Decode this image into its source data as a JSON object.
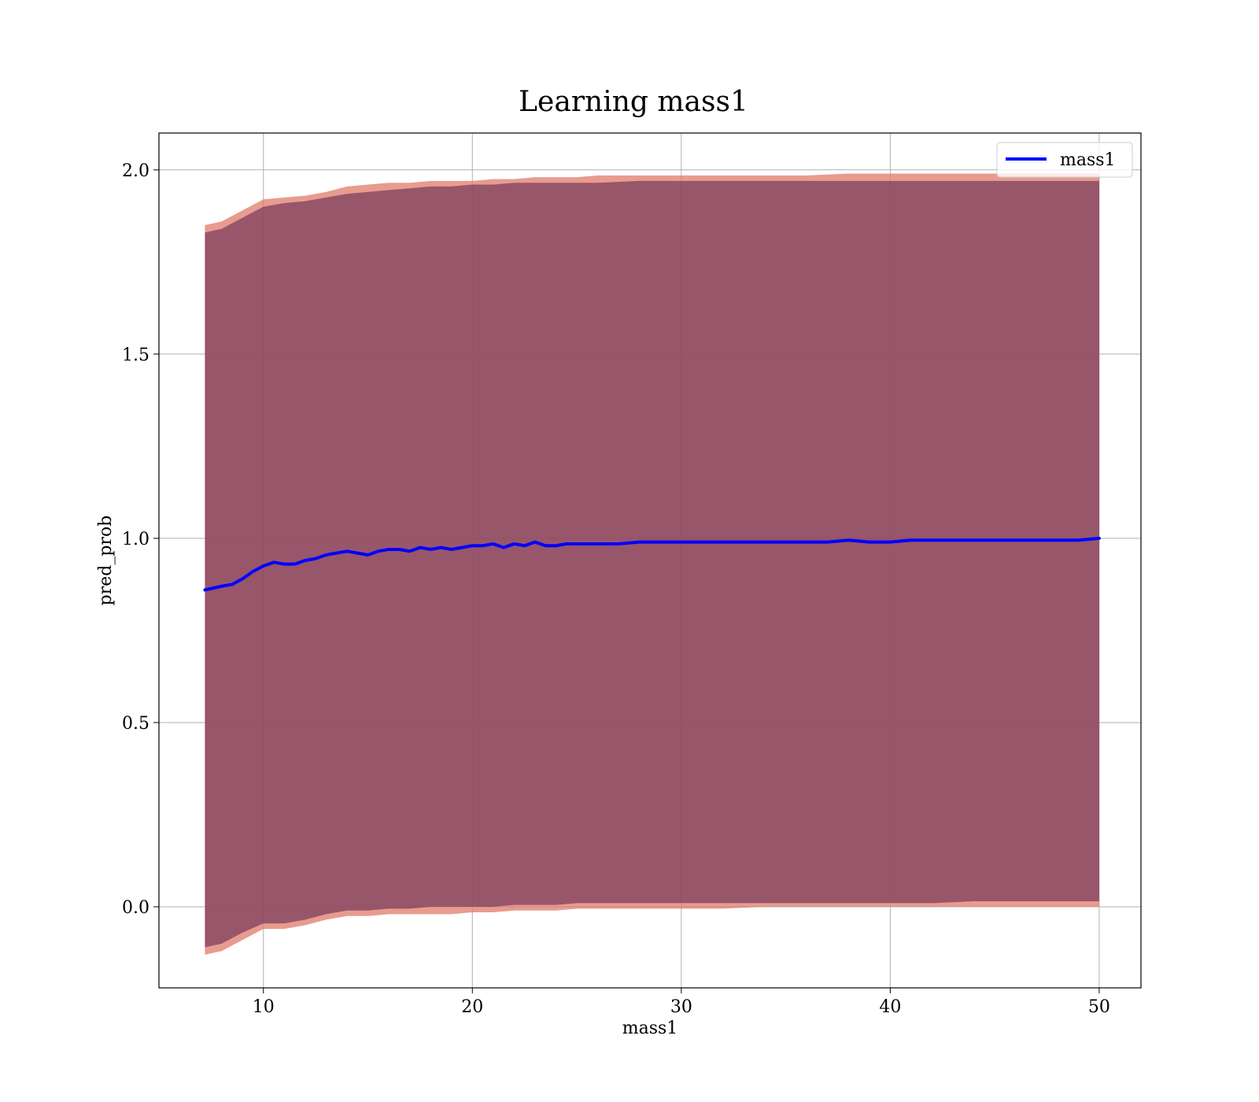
{
  "chart_data": {
    "type": "line",
    "title": "Learning mass1",
    "xlabel": "mass1",
    "ylabel": "pred_prob",
    "xlim": [
      5.0,
      52.0
    ],
    "ylim": [
      -0.22,
      2.1
    ],
    "xticks": [
      10,
      20,
      30,
      40,
      50
    ],
    "xtick_labels": [
      "10",
      "20",
      "30",
      "40",
      "50"
    ],
    "yticks": [
      0.0,
      0.5,
      1.0,
      1.5,
      2.0
    ],
    "ytick_labels": [
      "0.0",
      "0.5",
      "1.0",
      "1.5",
      "2.0"
    ],
    "grid": true,
    "legend": {
      "position": "top-right",
      "entries": [
        "mass1"
      ]
    },
    "series": [
      {
        "name": "mass1",
        "color": "#0000ff",
        "x": [
          7.2,
          7.6,
          8.0,
          8.5,
          9.0,
          9.5,
          10.0,
          10.5,
          11.0,
          11.5,
          12.0,
          12.5,
          13.0,
          13.5,
          14.0,
          14.5,
          15.0,
          15.5,
          16.0,
          16.5,
          17.0,
          17.5,
          18.0,
          18.5,
          19.0,
          19.5,
          20.0,
          20.5,
          21.0,
          21.5,
          22.0,
          22.5,
          23.0,
          23.5,
          24.0,
          24.5,
          25.0,
          26.0,
          27.0,
          28.0,
          29.0,
          30.0,
          31.0,
          32.0,
          33.0,
          34.0,
          35.0,
          36.0,
          37.0,
          38.0,
          39.0,
          40.0,
          41.0,
          42.0,
          43.0,
          44.0,
          45.0,
          46.0,
          47.0,
          48.0,
          49.0,
          50.0
        ],
        "y": [
          0.86,
          0.865,
          0.87,
          0.875,
          0.89,
          0.91,
          0.925,
          0.935,
          0.93,
          0.93,
          0.94,
          0.945,
          0.955,
          0.96,
          0.965,
          0.96,
          0.955,
          0.965,
          0.97,
          0.97,
          0.965,
          0.975,
          0.97,
          0.975,
          0.97,
          0.975,
          0.98,
          0.98,
          0.985,
          0.975,
          0.985,
          0.98,
          0.99,
          0.98,
          0.98,
          0.985,
          0.985,
          0.985,
          0.985,
          0.99,
          0.99,
          0.99,
          0.99,
          0.99,
          0.99,
          0.99,
          0.99,
          0.99,
          0.99,
          0.995,
          0.99,
          0.99,
          0.995,
          0.995,
          0.995,
          0.995,
          0.995,
          0.995,
          0.995,
          0.995,
          0.995,
          1.0
        ]
      }
    ],
    "bands": [
      {
        "color": "#e07a6a",
        "opacity": 0.75,
        "x": [
          7.2,
          8.0,
          9.0,
          10.0,
          11.0,
          12.0,
          13.0,
          14.0,
          15.0,
          16.0,
          17.0,
          18.0,
          19.0,
          20.0,
          21.0,
          22.0,
          23.0,
          24.0,
          25.0,
          26.0,
          28.0,
          30.0,
          32.0,
          34.0,
          36.0,
          38.0,
          40.0,
          42.0,
          44.0,
          46.0,
          48.0,
          50.0
        ],
        "upper": [
          1.85,
          1.86,
          1.89,
          1.92,
          1.925,
          1.93,
          1.94,
          1.955,
          1.96,
          1.965,
          1.965,
          1.97,
          1.97,
          1.97,
          1.975,
          1.975,
          1.98,
          1.98,
          1.98,
          1.985,
          1.985,
          1.985,
          1.985,
          1.985,
          1.985,
          1.99,
          1.99,
          1.99,
          1.99,
          1.99,
          1.99,
          1.99
        ],
        "lower": [
          -0.13,
          -0.12,
          -0.09,
          -0.06,
          -0.06,
          -0.05,
          -0.035,
          -0.025,
          -0.025,
          -0.02,
          -0.02,
          -0.02,
          -0.02,
          -0.015,
          -0.015,
          -0.01,
          -0.01,
          -0.01,
          -0.005,
          -0.005,
          -0.005,
          -0.005,
          -0.005,
          0.0,
          0.0,
          0.0,
          0.0,
          0.0,
          0.0,
          0.0,
          0.0,
          0.0
        ]
      },
      {
        "color": "#7e3f5e",
        "opacity": 0.75,
        "x": [
          7.2,
          8.0,
          9.0,
          10.0,
          11.0,
          12.0,
          13.0,
          14.0,
          15.0,
          16.0,
          17.0,
          18.0,
          19.0,
          20.0,
          21.0,
          22.0,
          23.0,
          24.0,
          25.0,
          26.0,
          28.0,
          30.0,
          32.0,
          34.0,
          36.0,
          38.0,
          40.0,
          42.0,
          44.0,
          46.0,
          48.0,
          50.0
        ],
        "upper": [
          1.83,
          1.84,
          1.87,
          1.9,
          1.91,
          1.915,
          1.925,
          1.935,
          1.94,
          1.945,
          1.95,
          1.955,
          1.955,
          1.96,
          1.96,
          1.965,
          1.965,
          1.965,
          1.965,
          1.965,
          1.97,
          1.97,
          1.97,
          1.97,
          1.97,
          1.97,
          1.97,
          1.97,
          1.97,
          1.97,
          1.97,
          1.97
        ],
        "lower": [
          -0.11,
          -0.1,
          -0.07,
          -0.045,
          -0.045,
          -0.035,
          -0.02,
          -0.01,
          -0.01,
          -0.005,
          -0.005,
          0.0,
          0.0,
          0.0,
          0.0,
          0.005,
          0.005,
          0.005,
          0.01,
          0.01,
          0.01,
          0.01,
          0.01,
          0.01,
          0.01,
          0.01,
          0.01,
          0.01,
          0.015,
          0.015,
          0.015,
          0.015
        ]
      }
    ]
  }
}
